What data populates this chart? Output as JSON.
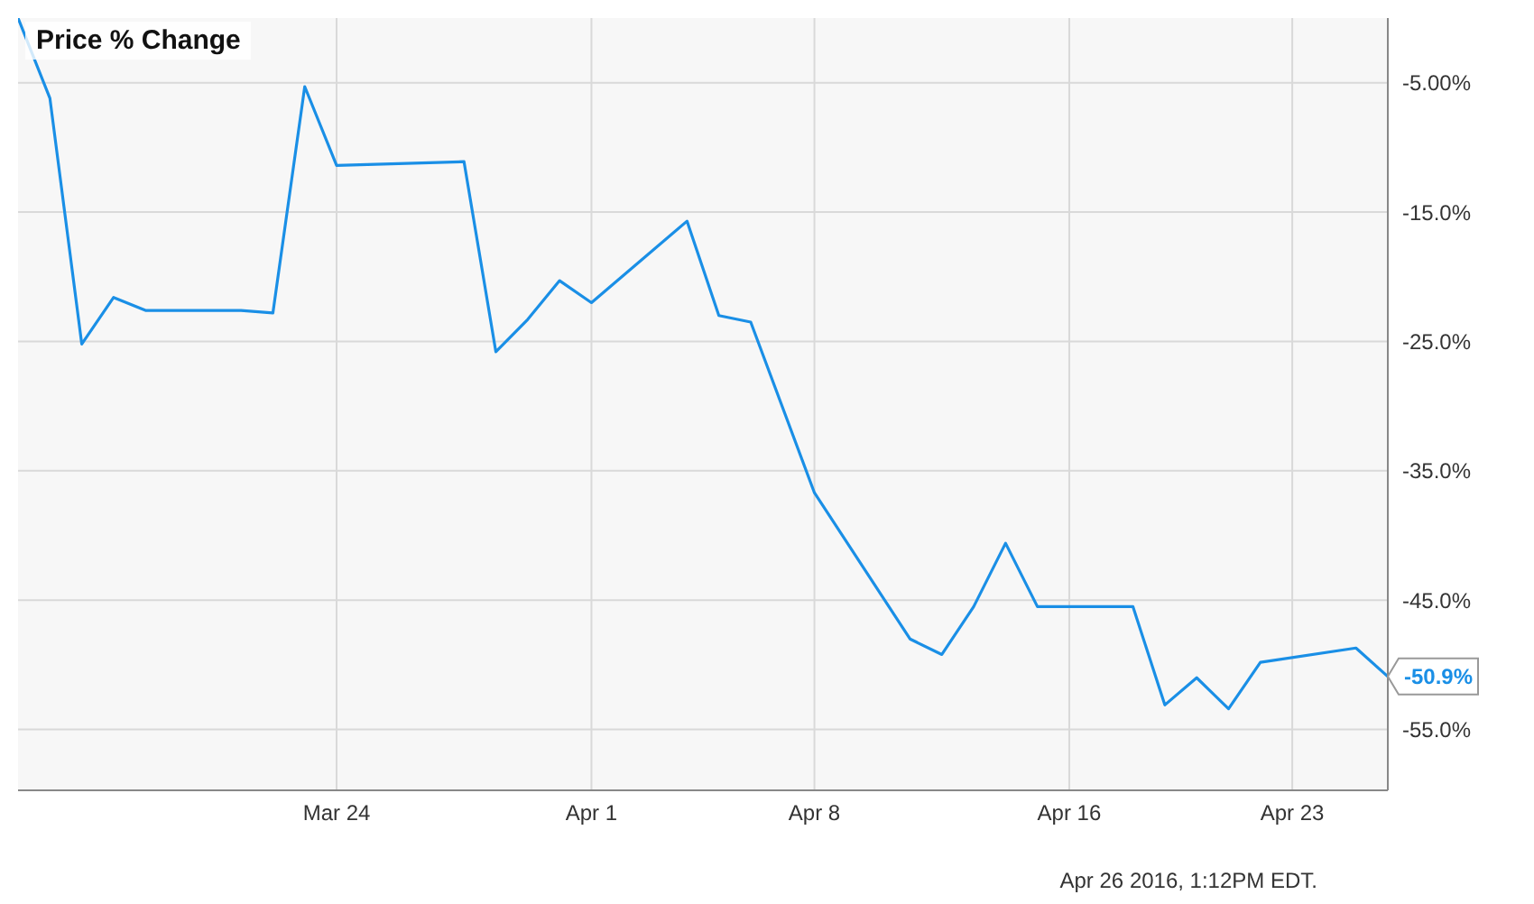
{
  "chart_data": {
    "type": "line",
    "title": "Price % Change",
    "x": [
      "2016-03-14",
      "2016-03-15",
      "2016-03-16",
      "2016-03-17",
      "2016-03-18",
      "2016-03-21",
      "2016-03-22",
      "2016-03-23",
      "2016-03-24",
      "2016-03-28",
      "2016-03-29",
      "2016-03-30",
      "2016-03-31",
      "2016-04-01",
      "2016-04-04",
      "2016-04-05",
      "2016-04-06",
      "2016-04-08",
      "2016-04-11",
      "2016-04-12",
      "2016-04-13",
      "2016-04-14",
      "2016-04-15",
      "2016-04-18",
      "2016-04-19",
      "2016-04-20",
      "2016-04-21",
      "2016-04-22",
      "2016-04-25",
      "2016-04-26"
    ],
    "series": [
      {
        "color": "#1a8fe6",
        "values": [
          0,
          -6.2,
          -25.2,
          -21.6,
          -22.6,
          -22.6,
          -22.8,
          -5.3,
          -11.4,
          -11.1,
          -25.8,
          -23.3,
          -20.3,
          -22.0,
          -15.7,
          -23.0,
          -23.5,
          -36.7,
          -48.0,
          -49.2,
          -45.5,
          -40.6,
          -45.5,
          -45.5,
          -53.1,
          -51.0,
          -53.4,
          -49.8,
          -48.7,
          -50.9
        ]
      }
    ],
    "xlim": [
      "2016-03-14",
      "2016-04-26"
    ],
    "xticks": [
      {
        "value": "2016-03-24",
        "label": "Mar 24"
      },
      {
        "value": "2016-04-01",
        "label": "Apr 1"
      },
      {
        "value": "2016-04-08",
        "label": "Apr 8"
      },
      {
        "value": "2016-04-16",
        "label": "Apr 16"
      },
      {
        "value": "2016-04-23",
        "label": "Apr 23"
      }
    ],
    "ylim": [
      -59.7,
      0
    ],
    "yticks": [
      {
        "value": -5,
        "label": "-5.00%"
      },
      {
        "value": -15,
        "label": "-15.0%"
      },
      {
        "value": -25,
        "label": "-25.0%"
      },
      {
        "value": -35,
        "label": "-35.0%"
      },
      {
        "value": -45,
        "label": "-45.0%"
      },
      {
        "value": -55,
        "label": "-55.0%"
      }
    ],
    "grid": true,
    "marker": "none",
    "line_style": "solid",
    "annotations": [
      {
        "text": "-50.9%",
        "x": "2016-04-26",
        "y": -50.9
      },
      "Apr 26 2016, 1:12PM EDT."
    ]
  }
}
